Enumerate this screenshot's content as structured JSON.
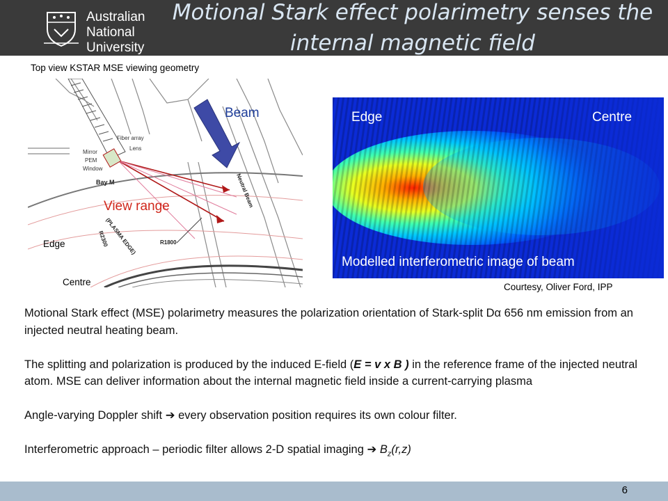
{
  "header": {
    "logo_lines": [
      "Australian",
      "National",
      "University"
    ],
    "title_line1": "Motional Stark effect polarimetry senses the",
    "title_line2": "internal magnetic field"
  },
  "diagram": {
    "caption": "Top view KSTAR MSE viewing geometry",
    "beam_label": "Beam",
    "view_range_label": "View range",
    "edge_label": "Edge",
    "centre_label": "Centre",
    "fiber_array": "Fiber array",
    "lens": "Lens",
    "mirror": "Mirror",
    "pem": "PEM",
    "window": "Window",
    "bay": "Bay M",
    "neutral_beam": "Neutral Beam",
    "plasma_edge": "(PLASMA EDGE)",
    "r2300": "R2300",
    "r1800": "R1800"
  },
  "image_panel": {
    "edge_label": "Edge",
    "centre_label": "Centre",
    "caption": "Modelled interferometric image of beam",
    "credit": "Courtesy, Oliver Ford, IPP"
  },
  "body": {
    "p1": "Motional Stark effect (MSE) polarimetry measures the polarization orientation of Stark-split Dα 656 nm emission from an injected neutral heating beam.",
    "p2_a": "The splitting and polarization is produced by the induced E-field (",
    "p2_eq": "E = v x B )",
    "p2_b": " in the reference frame of the injected neutral atom.   MSE can deliver information about the internal magnetic field inside a current-carrying plasma",
    "p3_a": "Angle-varying Doppler shift",
    "p3_arrow": "➔",
    "p3_b": " every observation position requires its own colour filter.",
    "p4_a": "Interferometric approach – periodic filter allows 2-D spatial imaging ",
    "p4_arrow": "➔",
    "p4_b": " B",
    "p4_sub": "z",
    "p4_c": "(r,z)"
  },
  "footer": {
    "page_number": "6"
  },
  "colors": {
    "header_bg": "#3a3a3a",
    "title_text": "#d9e6f2",
    "footer_bg": "#a9bccd",
    "beam_arrow": "#3e4aa6",
    "view_lines": "#b01818",
    "view_label": "#d0281c",
    "beam_label": "#1f3e9a"
  }
}
